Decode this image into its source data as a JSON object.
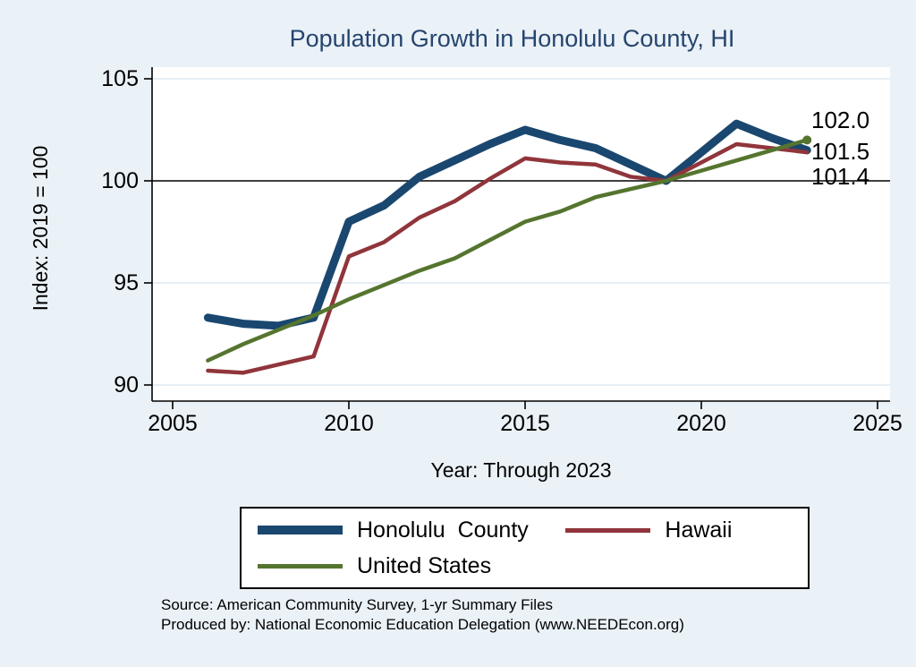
{
  "chart_data": {
    "type": "line",
    "title": "Population Growth in Honolulu County, HI",
    "xlabel": "Year: Through 2023",
    "ylabel": "Index: 2019 = 100",
    "x_ticks": [
      2005,
      2010,
      2015,
      2020,
      2025
    ],
    "y_ticks": [
      90,
      95,
      100,
      105
    ],
    "xlim": [
      2005,
      2025
    ],
    "ylim": [
      89.3,
      105.8
    ],
    "reference_line_y": 100,
    "grid": true,
    "legend_position": "bottom",
    "years": [
      2006,
      2007,
      2008,
      2009,
      2010,
      2011,
      2012,
      2013,
      2014,
      2015,
      2016,
      2017,
      2018,
      2019,
      2020,
      2021,
      2022,
      2023
    ],
    "series": [
      {
        "name": "Honolulu  County",
        "color": "#1a476f",
        "width": 9,
        "end_marker": false,
        "values": [
          93.3,
          93.0,
          92.9,
          93.3,
          98.0,
          98.8,
          100.2,
          101.0,
          101.8,
          102.5,
          102.0,
          101.6,
          100.8,
          100.0,
          101.4,
          102.8,
          102.1,
          101.5
        ]
      },
      {
        "name": "Hawaii",
        "color": "#90353b",
        "width": 4.5,
        "end_marker": false,
        "values": [
          90.7,
          90.6,
          91.0,
          91.4,
          96.3,
          97.0,
          98.2,
          99.0,
          100.1,
          101.1,
          100.9,
          100.8,
          100.2,
          100.0,
          100.9,
          101.8,
          101.6,
          101.4
        ]
      },
      {
        "name": "United States",
        "color": "#55752f",
        "width": 4.5,
        "end_marker": true,
        "values": [
          91.2,
          92.0,
          92.7,
          93.4,
          94.2,
          94.9,
          95.6,
          96.2,
          97.1,
          98.0,
          98.5,
          99.2,
          99.6,
          100.0,
          100.5,
          101.0,
          101.5,
          102.0
        ]
      }
    ],
    "end_labels": [
      {
        "text": "102.0"
      },
      {
        "text": "101.5"
      },
      {
        "text": "101.4"
      }
    ]
  },
  "notes": {
    "source": "Source: American Community Survey, 1-yr Summary Files",
    "produced": "Produced by: National Economic Education Delegation (www.NEEDEcon.org)"
  },
  "colors": {
    "background": "#eaf1f7",
    "plot_background": "#ffffff",
    "grid": "#dde9f2",
    "axis": "#000000",
    "title": "#26456e"
  }
}
